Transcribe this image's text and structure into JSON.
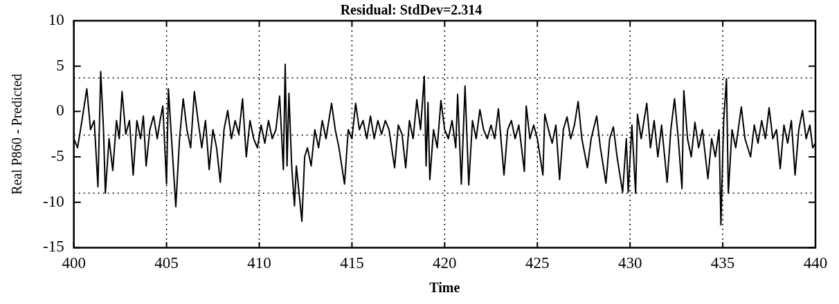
{
  "chart_data": {
    "type": "line",
    "title": "Residual: StdDev=2.314",
    "xlabel": "Time",
    "ylabel": "Real P860 - Predicted",
    "xlim": [
      400,
      440
    ],
    "xticks": [
      400,
      405,
      410,
      415,
      420,
      425,
      430,
      435,
      440
    ],
    "ylim": [
      -15,
      10
    ],
    "yticks": [
      -15,
      -10,
      -5,
      0,
      5,
      10
    ],
    "grid": "x",
    "legend": false,
    "marker": "none",
    "line_style": "solid",
    "ref_lines": [
      {
        "axis": "y",
        "value": 3.7,
        "line_style": "dotted",
        "color": "#000000"
      },
      {
        "axis": "y",
        "value": -2.6,
        "line_style": "dotted",
        "color": "#000000"
      },
      {
        "axis": "y",
        "value": -9.0,
        "line_style": "dotted",
        "color": "#000000"
      }
    ],
    "series": [
      {
        "color": "#000000",
        "x": [
          400,
          400.2,
          400.4,
          400.7,
          400.9,
          401.1,
          401.3,
          401.45,
          401.6,
          401.7,
          401.9,
          402.1,
          402.3,
          402.45,
          402.6,
          402.8,
          403.0,
          403.2,
          403.4,
          403.6,
          403.75,
          403.9,
          404.1,
          404.3,
          404.5,
          404.65,
          404.8,
          405.0,
          405.1,
          405.3,
          405.5,
          405.7,
          405.9,
          406.1,
          406.3,
          406.5,
          406.7,
          406.9,
          407.1,
          407.3,
          407.5,
          407.7,
          407.9,
          408.1,
          408.3,
          408.5,
          408.7,
          408.9,
          409.1,
          409.3,
          409.5,
          409.7,
          409.9,
          410.1,
          410.3,
          410.5,
          410.7,
          410.9,
          411.1,
          411.3,
          411.4,
          411.5,
          411.6,
          411.75,
          411.9,
          412.0,
          412.15,
          412.3,
          412.45,
          412.6,
          412.8,
          413.0,
          413.2,
          413.4,
          413.6,
          413.9,
          414.1,
          414.3,
          414.6,
          414.8,
          415.0,
          415.2,
          415.4,
          415.6,
          415.8,
          416.0,
          416.2,
          416.4,
          416.6,
          416.8,
          417.0,
          417.3,
          417.5,
          417.7,
          417.9,
          418.1,
          418.3,
          418.5,
          418.7,
          418.9,
          419.0,
          419.1,
          419.2,
          419.4,
          419.6,
          419.8,
          420.0,
          420.2,
          420.4,
          420.6,
          420.7,
          420.9,
          421.1,
          421.3,
          421.5,
          421.7,
          421.9,
          422.1,
          422.3,
          422.5,
          422.7,
          422.9,
          423.2,
          423.4,
          423.6,
          423.8,
          424.0,
          424.3,
          424.4,
          424.6,
          424.8,
          425.0,
          425.3,
          425.4,
          425.6,
          425.8,
          426.0,
          426.2,
          426.4,
          426.6,
          426.8,
          427.0,
          427.2,
          427.4,
          427.7,
          427.9,
          428.2,
          428.4,
          428.7,
          428.9,
          429.1,
          429.3,
          429.6,
          429.8,
          429.9,
          430.1,
          430.3,
          430.4,
          430.6,
          430.9,
          431.1,
          431.3,
          431.5,
          431.7,
          432.0,
          432.2,
          432.4,
          432.6,
          432.8,
          432.9,
          433.1,
          433.3,
          433.5,
          433.7,
          433.9,
          434.2,
          434.4,
          434.6,
          434.8,
          434.9,
          435.05,
          435.2,
          435.3,
          435.5,
          435.7,
          436.0,
          436.2,
          436.5,
          436.7,
          436.9,
          437.1,
          437.3,
          437.5,
          437.7,
          437.9,
          438.1,
          438.3,
          438.5,
          438.7,
          438.9,
          439.1,
          439.3,
          439.5,
          439.7,
          439.85,
          440
        ],
        "values": [
          -3,
          -4,
          -1.5,
          2.5,
          -2,
          -1,
          -8.3,
          4.4,
          -2,
          -9,
          -3,
          -6.5,
          -1,
          -3,
          2.2,
          -2.5,
          -1,
          -7,
          -1,
          -3,
          -0.5,
          -6,
          -2,
          -0.5,
          -3,
          -1,
          0.6,
          -8,
          2.5,
          -4,
          -10.5,
          -3,
          1.4,
          -2,
          -4,
          2.2,
          -1,
          -4,
          -1,
          -6.4,
          -2,
          -4,
          -7.8,
          -2,
          0.1,
          -3,
          -1,
          -2.5,
          1.4,
          -5,
          -1,
          -3,
          -4,
          -1.5,
          -3.5,
          -1,
          -3,
          -2,
          1.7,
          -6.4,
          5.2,
          -6,
          2,
          -6,
          -10.4,
          -6,
          -9,
          -12.1,
          -5,
          -4,
          -6,
          -2,
          -4,
          -1,
          -3,
          0.9,
          -2,
          -4,
          -8,
          -2,
          -3,
          0.9,
          -2,
          -1,
          -3,
          -0.5,
          -3,
          -1,
          -2.5,
          -1,
          -2,
          -6.2,
          -1.5,
          -2.5,
          -6.2,
          -1,
          -3,
          1.3,
          -2,
          3.9,
          -6,
          1,
          -7.5,
          -2,
          -4,
          1.2,
          -2,
          -3,
          -1,
          -4,
          1.9,
          -8,
          2.8,
          -8.1,
          -1,
          -3,
          0.2,
          -2,
          -3,
          -1.5,
          -3,
          0.3,
          -7,
          -2,
          -1,
          -3,
          -1.5,
          -6.6,
          0.6,
          -3,
          -1.5,
          -3,
          -7,
          -0.3,
          -2,
          -3.5,
          -1.5,
          -7.5,
          -2,
          -0.6,
          -3,
          -1.5,
          1.1,
          -3,
          -6.2,
          -3,
          -0.5,
          -4,
          -7.9,
          -3,
          -1.7,
          -5,
          -8.9,
          -3,
          -8.9,
          -1.5,
          -9,
          -0.3,
          -3,
          0.9,
          -4,
          -1,
          -5,
          -1.5,
          -7.8,
          -2,
          1.4,
          -3,
          -8.5,
          2.3,
          -3,
          -5,
          -1.2,
          -4,
          -2,
          -7.4,
          -3,
          -5,
          -2,
          -12.5,
          -1,
          3.6,
          -9,
          -2,
          -4,
          0.5,
          -3,
          -5,
          -1.5,
          -3.5,
          -1,
          -3,
          0.4,
          -3,
          -2,
          -6.3,
          -1.5,
          -3.5,
          -1,
          -7,
          -2,
          0.1,
          -3,
          -1.5,
          -4,
          -3.5
        ]
      }
    ]
  }
}
